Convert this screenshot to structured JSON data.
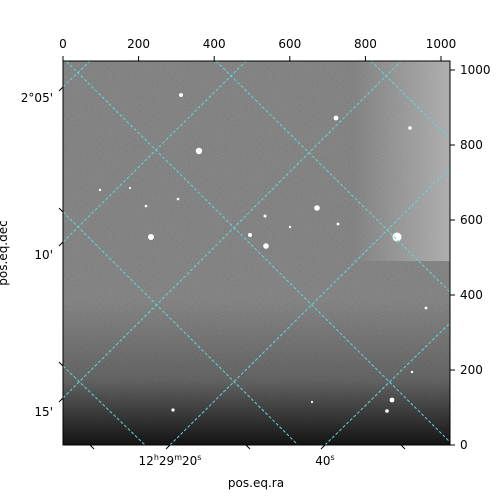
{
  "figure": {
    "xlabel": "pos.eq.ra",
    "ylabel": "pos.eq.dec",
    "top_ticks": [
      "0",
      "200",
      "400",
      "600",
      "800",
      "1000"
    ],
    "right_ticks": [
      "0",
      "200",
      "400",
      "600",
      "800",
      "1000"
    ],
    "left_ticks": [
      "2°05'",
      "10'",
      "15'"
    ],
    "bottom_ticks": [
      {
        "h": "12",
        "hs": "h",
        "m": "29",
        "ms": "m",
        "s": "20",
        "ss": "s"
      },
      {
        "h": "",
        "hs": "",
        "m": "",
        "ms": "",
        "s": "40",
        "ss": "s"
      }
    ],
    "colors": {
      "grid": "#5fd8d8",
      "image_background": "#6e6e6e",
      "bottom_shading": "#1a1a1a",
      "frame": "#000000"
    }
  },
  "chart_data": {
    "type": "image",
    "xlabel": "pos.eq.ra",
    "ylabel": "pos.eq.dec",
    "pixel_axes": {
      "xlim": [
        0,
        1024
      ],
      "ylim": [
        0,
        1024
      ],
      "ticks": [
        0,
        200,
        400,
        600,
        800,
        1000
      ]
    },
    "world_ticks": {
      "dec": [
        "2°05'",
        "10'",
        "15'"
      ],
      "ra": [
        "12h29m20s",
        "40s"
      ]
    },
    "grid": true,
    "colormap": "gray"
  }
}
